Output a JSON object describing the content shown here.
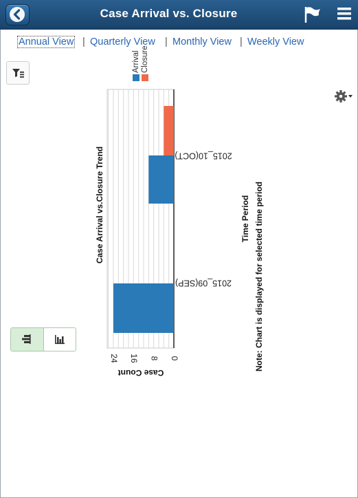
{
  "header": {
    "title": "Case Arrival vs. Closure",
    "back_icon": "chevron-left-icon",
    "flag_icon": "flag-icon",
    "menu_icon": "hamburger-menu-icon",
    "bg_color": "#1f4e7a"
  },
  "tabs": [
    {
      "label": "Annual View",
      "active": true
    },
    {
      "label": "Quarterly View",
      "active": false
    },
    {
      "label": "Monthly View",
      "active": false
    },
    {
      "label": "Weekly View",
      "active": false
    }
  ],
  "tab_separator": "|",
  "toolbar": {
    "filter_icon": "filter-icon",
    "settings_icon": "gear-icon"
  },
  "view_toggle": {
    "options": [
      "horizontal-bar-chart-icon",
      "vertical-bar-chart-icon"
    ],
    "selected": "horizontal-bar-chart-icon"
  },
  "chart_data": {
    "type": "bar",
    "orientation": "horizontal",
    "title": "Case Arrival vs.Closure Trend",
    "xlabel": "Time Period",
    "ylabel": "Case Count",
    "note": "Note: Chart is displayed for selected time period",
    "categories": [
      "2015_09(SEP)",
      "2015_10(OCT)"
    ],
    "series": [
      {
        "name": "Arrival",
        "color": "#2a7ab8",
        "values": [
          24,
          10
        ]
      },
      {
        "name": "Closure",
        "color": "#f0694a",
        "values": [
          0,
          4
        ]
      }
    ],
    "ylim": [
      0,
      28
    ],
    "ticks": [
      0,
      8,
      16,
      24
    ],
    "grid": true,
    "legend": "top"
  }
}
